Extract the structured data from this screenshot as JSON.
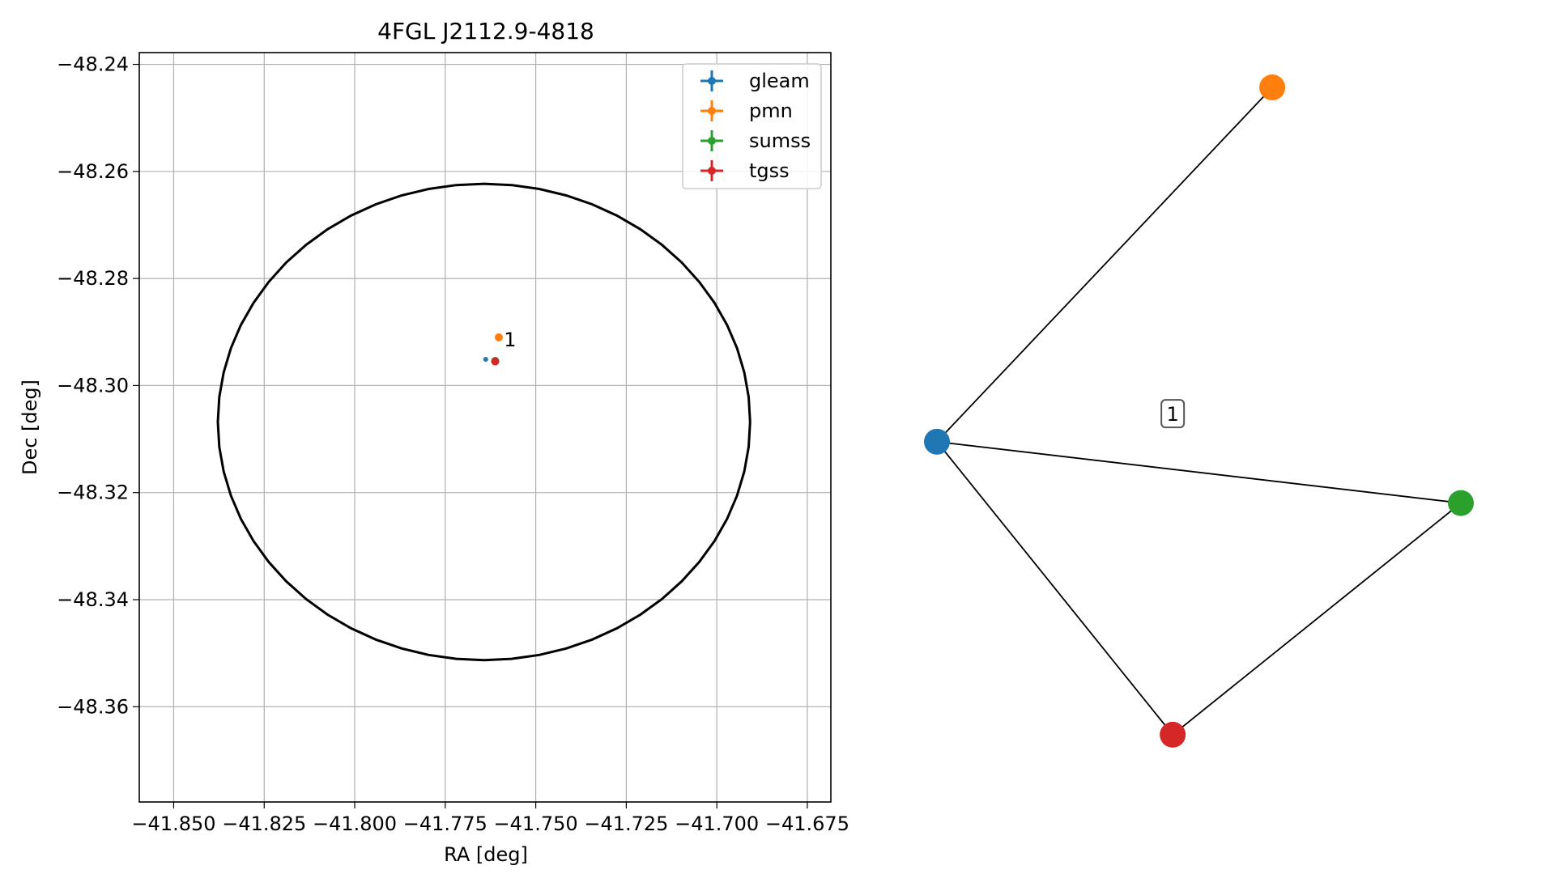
{
  "chart_data": [
    {
      "type": "scatter",
      "title": "4FGL J2112.9-4818",
      "xlabel": "RA [deg]",
      "ylabel": "Dec [deg]",
      "xlim": [
        -41.8595,
        -41.6685
      ],
      "ylim": [
        -48.3778,
        -48.2378
      ],
      "xticks": [
        -41.85,
        -41.825,
        -41.8,
        -41.775,
        -41.75,
        -41.725,
        -41.7,
        -41.675
      ],
      "xtick_labels": [
        "−41.850",
        "−41.825",
        "−41.800",
        "−41.775",
        "−41.750",
        "−41.725",
        "−41.700",
        "−41.675"
      ],
      "yticks": [
        -48.24,
        -48.26,
        -48.28,
        -48.3,
        -48.32,
        -48.34,
        -48.36
      ],
      "ytick_labels": [
        "−48.24",
        "−48.26",
        "−48.28",
        "−48.30",
        "−48.32",
        "−48.34",
        "−48.36"
      ],
      "grid": true,
      "legend_position": "top-right",
      "circle": {
        "center": [
          -41.7643,
          -48.3068
        ],
        "radius_ra": 0.0735,
        "radius_dec": 0.0445,
        "color": "#000000"
      },
      "series": [
        {
          "name": "gleam",
          "color": "#1f77b4",
          "points": [
            [
              -41.7627,
              -48.2951
            ]
          ]
        },
        {
          "name": "pmn",
          "color": "#ff7f0e",
          "points": [
            [
              -41.7602,
              -48.291
            ]
          ]
        },
        {
          "name": "sumss",
          "color": "#2ca02c",
          "points": [
            [
              -41.7612,
              -48.2954
            ]
          ]
        },
        {
          "name": "tgss",
          "color": "#d62728",
          "points": [
            [
              -41.7612,
              -48.2955
            ]
          ]
        }
      ],
      "annotations": [
        {
          "text": "1",
          "x": -41.7588,
          "y": -48.2915
        }
      ]
    },
    {
      "type": "graph",
      "nodes": [
        {
          "id": "gleam",
          "color": "#1f77b4",
          "pos": [
            0.0,
            0.52
          ]
        },
        {
          "id": "pmn",
          "color": "#ff7f0e",
          "pos": [
            0.64,
            0.0
          ]
        },
        {
          "id": "sumss",
          "color": "#2ca02c",
          "pos": [
            1.0,
            0.61
          ]
        },
        {
          "id": "tgss",
          "color": "#d62728",
          "pos": [
            0.45,
            0.95
          ]
        }
      ],
      "edges": [
        [
          "gleam",
          "pmn"
        ],
        [
          "gleam",
          "sumss"
        ],
        [
          "gleam",
          "tgss"
        ],
        [
          "tgss",
          "sumss"
        ]
      ],
      "edge_label": "1"
    }
  ]
}
